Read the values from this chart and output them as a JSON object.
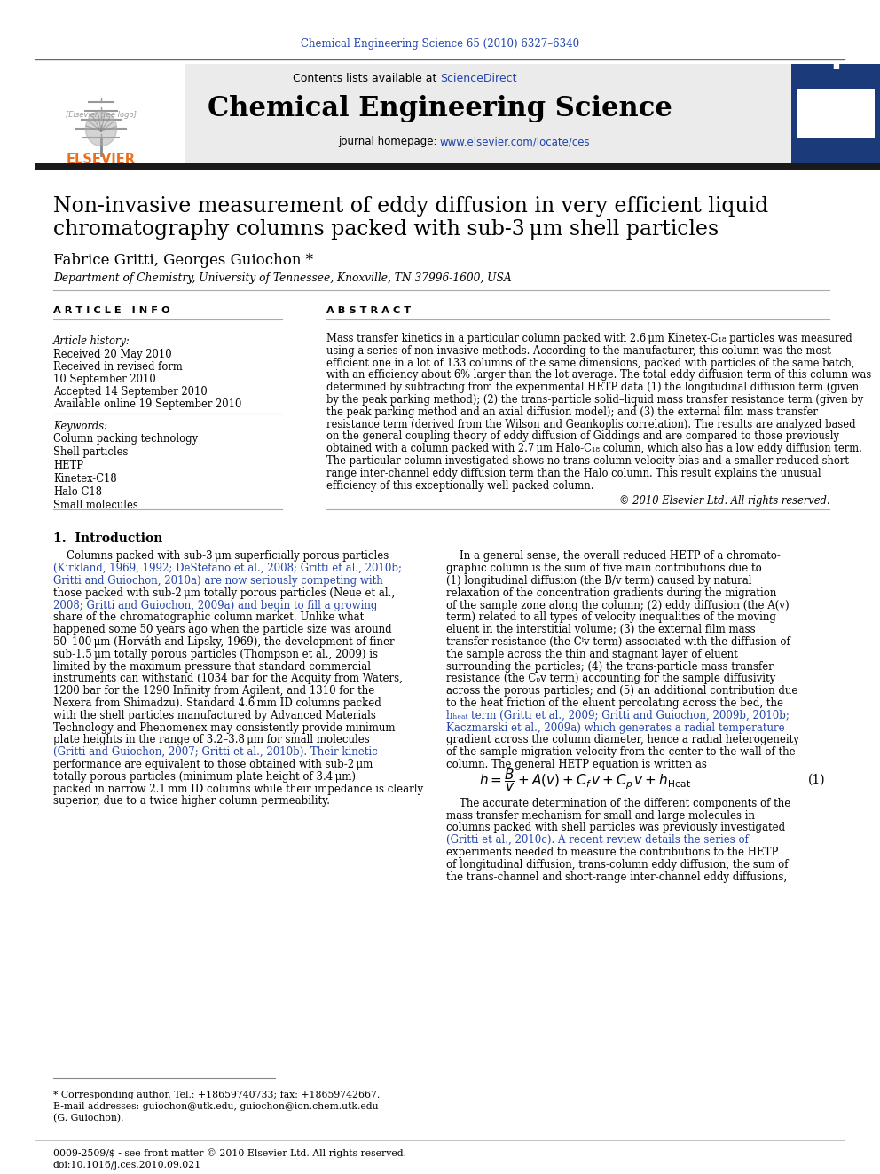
{
  "journal_ref": "Chemical Engineering Science 65 (2010) 6327–6340",
  "contents_text": "Contents lists available at ",
  "sciencedirect": "ScienceDirect",
  "journal_name": "Chemical Engineering Science",
  "journal_homepage_prefix": "journal homepage: ",
  "journal_url": "www.elsevier.com/locate/ces",
  "paper_title_line1": "Non-invasive measurement of eddy diffusion in very efficient liquid",
  "paper_title_line2": "chromatography columns packed with sub-3 μm shell particles",
  "authors": "Fabrice Gritti, Georges Guiochon *",
  "affiliation": "Department of Chemistry, University of Tennessee, Knoxville, TN 37996-1600, USA",
  "article_info_header": "A R T I C L E   I N F O",
  "abstract_header": "A B S T R A C T",
  "article_history_label": "Article history:",
  "received": "Received 20 May 2010",
  "received_revised": "Received in revised form",
  "received_revised2": "10 September 2010",
  "accepted": "Accepted 14 September 2010",
  "available": "Available online 19 September 2010",
  "keywords_label": "Keywords:",
  "keywords": [
    "Column packing technology",
    "Shell particles",
    "HETP",
    "Kinetex-C18",
    "Halo-C18",
    "Small molecules"
  ],
  "bg_color": "#ffffff",
  "header_bg": "#ebebeb",
  "link_color": "#2244aa",
  "dark_bar_color": "#1a1a1a",
  "orange_color": "#e87020",
  "blue_sidebar_color": "#1a3a7a",
  "footnote_star": "* Corresponding author. Tel.: +18659740733; fax: +18659742667.",
  "footnote_email": "E-mail addresses: guiochon@utk.edu, guiochon@ion.chem.utk.edu",
  "footnote_initial": "(G. Guiochon).",
  "footer_issn": "0009-2509/$ - see front matter © 2010 Elsevier Ltd. All rights reserved.",
  "footer_doi": "doi:10.1016/j.ces.2010.09.021"
}
